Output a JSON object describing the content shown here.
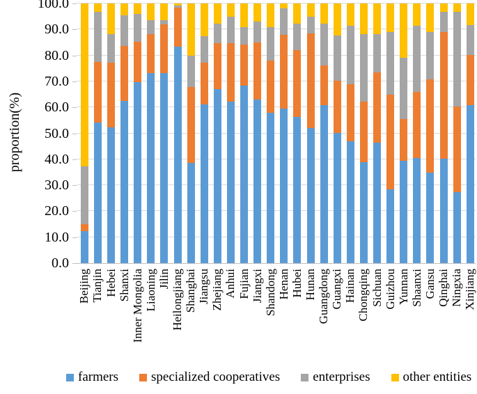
{
  "chart_data": {
    "type": "bar",
    "stacked": true,
    "percent_stacked": true,
    "title": "",
    "xlabel": "",
    "ylabel": "proportion(%)",
    "ylim": [
      0,
      100
    ],
    "ytick_step": 10,
    "ytick_labels": [
      "0.0",
      "10.0",
      "20.0",
      "30.0",
      "40.0",
      "50.0",
      "60.0",
      "70.0",
      "80.0",
      "90.0",
      "100.0"
    ],
    "grid": true,
    "legend_position": "bottom",
    "categories": [
      "Beijing",
      "Tianjin",
      "Hebei",
      "Shanxi",
      "Inner Mongolia",
      "Liaoning",
      "Jilin",
      "Heilongjiang",
      "Shanghai",
      "Jiangsu",
      "Zhejiang",
      "Anhui",
      "Fujian",
      "Jiangxi",
      "Shandong",
      "Henan",
      "Hubei",
      "Hunan",
      "Guangdong",
      "Guangxi",
      "Hainan",
      "Chongqing",
      "Sichuan",
      "Guizhou",
      "Yunnan",
      "Shaanxi",
      "Gansu",
      "Qinghai",
      "Ningxia",
      "Xinjiang"
    ],
    "series": [
      {
        "name": "farmers",
        "color": "#5B9BD5",
        "values": [
          12.4,
          54.1,
          52.3,
          62.6,
          69.7,
          73.1,
          73.3,
          83.5,
          38.6,
          61.0,
          66.9,
          62.2,
          68.5,
          63.1,
          58.0,
          59.5,
          56.4,
          51.9,
          60.9,
          50.1,
          47.0,
          38.9,
          46.5,
          28.4,
          39.4,
          40.5,
          34.9,
          40.3,
          27.3,
          60.9
        ]
      },
      {
        "name": "specialized cooperatives",
        "color": "#ED7D31",
        "values": [
          2.7,
          23.3,
          24.9,
          21.0,
          15.5,
          15.0,
          18.6,
          14.8,
          29.3,
          16.1,
          17.7,
          22.4,
          15.7,
          22.0,
          19.9,
          28.5,
          25.7,
          36.5,
          15.2,
          20.2,
          21.9,
          23.3,
          27.0,
          36.5,
          16.1,
          25.5,
          35.8,
          48.8,
          33.1,
          19.2
        ]
      },
      {
        "name": "enterprises",
        "color": "#A5A5A5",
        "values": [
          22.1,
          19.5,
          11.1,
          11.8,
          10.8,
          5.4,
          1.7,
          0.9,
          12.0,
          10.3,
          7.6,
          10.3,
          6.7,
          8.0,
          12.9,
          10.2,
          10.1,
          6.5,
          16.1,
          17.4,
          22.4,
          26.0,
          14.7,
          24.2,
          23.7,
          25.3,
          18.4,
          7.6,
          36.3,
          11.7
        ]
      },
      {
        "name": "other entities",
        "color": "#FFC000",
        "values": [
          62.8,
          3.1,
          11.7,
          4.6,
          4.0,
          6.5,
          6.4,
          0.8,
          20.1,
          12.6,
          7.8,
          5.1,
          9.1,
          6.9,
          9.2,
          1.8,
          7.8,
          5.1,
          7.8,
          12.3,
          8.7,
          11.8,
          11.8,
          10.9,
          20.8,
          8.7,
          10.9,
          3.3,
          3.3,
          8.2
        ]
      }
    ],
    "colors": {
      "gridline": "#D9D9D9",
      "axis_line": "#BFBFBF",
      "text": "#000000",
      "background": "#FFFFFF"
    }
  }
}
